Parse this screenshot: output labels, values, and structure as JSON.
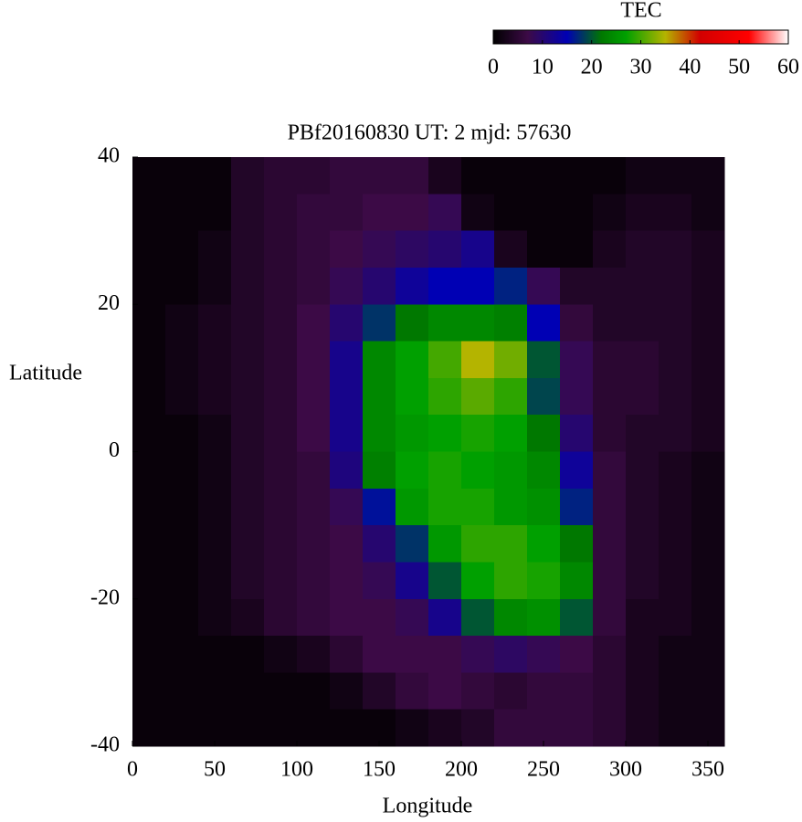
{
  "chart_data": {
    "type": "heatmap",
    "title": "PBf20160830  UT: 2  mjd: 57630",
    "x_label": "Longitude",
    "y_label": "Latitude",
    "xlim": [
      0,
      360
    ],
    "ylim": [
      -40,
      40
    ],
    "xticks": [
      0,
      50,
      100,
      150,
      200,
      250,
      300,
      350
    ],
    "yticks": [
      -40,
      -20,
      0,
      20,
      40
    ],
    "z": [
      [
        1,
        1,
        1,
        4,
        5,
        5,
        6,
        6,
        6,
        3,
        1,
        1,
        1,
        1,
        1,
        2,
        2,
        2
      ],
      [
        1,
        1,
        1,
        4,
        5,
        6,
        6,
        7,
        7,
        8,
        2,
        1,
        1,
        1,
        2,
        3,
        3,
        2
      ],
      [
        1,
        1,
        2,
        4,
        5,
        6,
        7,
        8,
        9,
        10,
        12,
        3,
        1,
        1,
        3,
        4,
        4,
        3
      ],
      [
        1,
        1,
        2,
        4,
        5,
        6,
        8,
        10,
        13,
        15,
        15,
        17,
        8,
        4,
        4,
        4,
        4,
        3
      ],
      [
        1,
        2,
        3,
        4,
        5,
        7,
        10,
        18,
        22,
        24,
        24,
        23,
        15,
        6,
        4,
        4,
        4,
        3
      ],
      [
        1,
        2,
        3,
        4,
        5,
        7,
        12,
        24,
        27,
        30,
        35,
        32,
        20,
        8,
        5,
        5,
        4,
        3
      ],
      [
        1,
        2,
        3,
        4,
        5,
        7,
        12,
        24,
        27,
        29,
        31,
        29,
        19,
        8,
        5,
        5,
        4,
        3
      ],
      [
        1,
        1,
        2,
        4,
        5,
        7,
        12,
        24,
        26,
        27,
        28,
        27,
        22,
        10,
        5,
        4,
        4,
        3
      ],
      [
        1,
        1,
        2,
        4,
        5,
        6,
        11,
        23,
        27,
        28,
        27,
        26,
        24,
        13,
        6,
        4,
        3,
        2
      ],
      [
        1,
        1,
        2,
        4,
        5,
        6,
        8,
        16,
        26,
        28,
        28,
        26,
        25,
        17,
        6,
        4,
        3,
        2
      ],
      [
        1,
        1,
        2,
        4,
        5,
        6,
        7,
        10,
        18,
        26,
        29,
        29,
        27,
        22,
        6,
        4,
        3,
        2
      ],
      [
        1,
        1,
        2,
        4,
        5,
        6,
        7,
        8,
        12,
        20,
        27,
        29,
        28,
        24,
        6,
        4,
        3,
        2
      ],
      [
        1,
        1,
        2,
        3,
        5,
        6,
        7,
        7,
        8,
        12,
        20,
        24,
        25,
        20,
        6,
        3,
        3,
        2
      ],
      [
        1,
        1,
        1,
        1,
        2,
        3,
        5,
        7,
        7,
        7,
        8,
        9,
        8,
        7,
        5,
        3,
        2,
        2
      ],
      [
        1,
        1,
        1,
        1,
        1,
        1,
        2,
        4,
        6,
        7,
        6,
        5,
        6,
        6,
        5,
        3,
        2,
        2
      ],
      [
        1,
        1,
        1,
        1,
        1,
        1,
        1,
        1,
        2,
        3,
        4,
        6,
        6,
        6,
        5,
        3,
        2,
        2
      ]
    ],
    "colorbar": {
      "label": "TEC",
      "lim": [
        0,
        60
      ],
      "ticks": [
        0,
        10,
        20,
        30,
        40,
        50,
        60
      ],
      "stops": [
        {
          "value": 0,
          "color": "#000000"
        },
        {
          "value": 7,
          "color": "#3c0a46"
        },
        {
          "value": 15,
          "color": "#0000b4"
        },
        {
          "value": 22,
          "color": "#007800"
        },
        {
          "value": 27,
          "color": "#00a000"
        },
        {
          "value": 35,
          "color": "#b4b400"
        },
        {
          "value": 42,
          "color": "#d20000"
        },
        {
          "value": 52,
          "color": "#ff0000"
        },
        {
          "value": 60,
          "color": "#ffffff"
        }
      ]
    }
  }
}
